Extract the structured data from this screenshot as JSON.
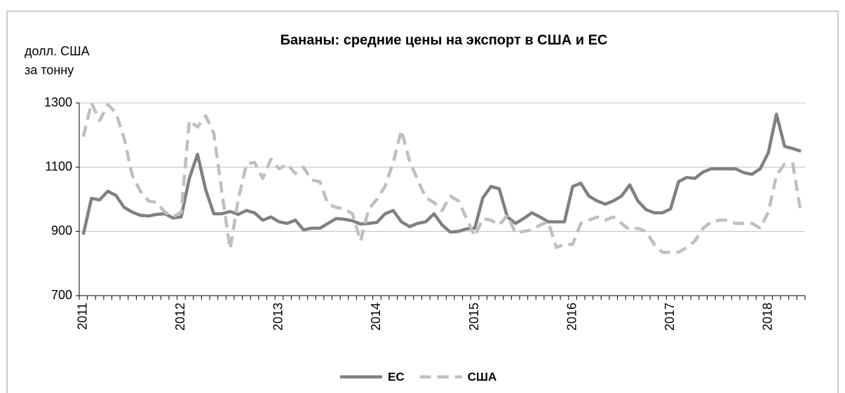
{
  "chart_data": {
    "type": "line",
    "title": "Бананы: средние цены на экспорт в США и ЕС",
    "y_label_lines": [
      "долл. США",
      "за тонну"
    ],
    "categories": [
      "2011",
      null,
      null,
      null,
      null,
      null,
      null,
      null,
      null,
      null,
      null,
      null,
      "2012",
      null,
      null,
      null,
      null,
      null,
      null,
      null,
      null,
      null,
      null,
      null,
      "2013",
      null,
      null,
      null,
      null,
      null,
      null,
      null,
      null,
      null,
      null,
      null,
      "2014",
      null,
      null,
      null,
      null,
      null,
      null,
      null,
      null,
      null,
      null,
      null,
      "2015",
      null,
      null,
      null,
      null,
      null,
      null,
      null,
      null,
      null,
      null,
      null,
      "2016",
      null,
      null,
      null,
      null,
      null,
      null,
      null,
      null,
      null,
      null,
      null,
      "2017",
      null,
      null,
      null,
      null,
      null,
      null,
      null,
      null,
      null,
      null,
      null,
      "2018",
      null,
      null,
      null,
      null
    ],
    "ylim": [
      700,
      1300
    ],
    "yticks": [
      700,
      900,
      1100,
      1300
    ],
    "grid": true,
    "series": [
      {
        "name": "ЕС",
        "color": "#808080",
        "dash": false,
        "values": [
          890,
          1003,
          998,
          1025,
          1012,
          975,
          960,
          950,
          948,
          953,
          955,
          942,
          945,
          1065,
          1140,
          1030,
          955,
          955,
          962,
          953,
          965,
          958,
          935,
          945,
          930,
          925,
          935,
          905,
          910,
          910,
          925,
          940,
          938,
          933,
          923,
          925,
          928,
          955,
          965,
          930,
          915,
          925,
          930,
          955,
          920,
          898,
          900,
          908,
          910,
          1005,
          1040,
          1033,
          945,
          925,
          940,
          958,
          945,
          930,
          930,
          930,
          1040,
          1050,
          1010,
          995,
          985,
          995,
          1010,
          1045,
          995,
          968,
          958,
          958,
          970,
          1055,
          1068,
          1065,
          1085,
          1095,
          1095,
          1095,
          1095,
          1083,
          1078,
          1095,
          1145,
          1265,
          1165,
          1158,
          1150
        ]
      },
      {
        "name": "США",
        "color": "#bfbfbf",
        "dash": true,
        "values": [
          1195,
          1300,
          1245,
          1295,
          1270,
          1190,
          1075,
          1025,
          995,
          990,
          960,
          945,
          960,
          1245,
          1225,
          1260,
          1205,
          1020,
          845,
          1000,
          1110,
          1115,
          1065,
          1125,
          1095,
          1110,
          1080,
          1100,
          1060,
          1055,
          985,
          975,
          970,
          955,
          870,
          970,
          1000,
          1040,
          1115,
          1215,
          1120,
          1060,
          1005,
          990,
          965,
          1010,
          995,
          940,
          885,
          940,
          935,
          920,
          950,
          895,
          900,
          905,
          920,
          930,
          850,
          860,
          860,
          925,
          935,
          945,
          935,
          945,
          925,
          905,
          910,
          900,
          860,
          835,
          835,
          835,
          850,
          870,
          910,
          930,
          935,
          935,
          925,
          925,
          925,
          910,
          960,
          1075,
          1110,
          1110,
          955
        ]
      }
    ]
  }
}
